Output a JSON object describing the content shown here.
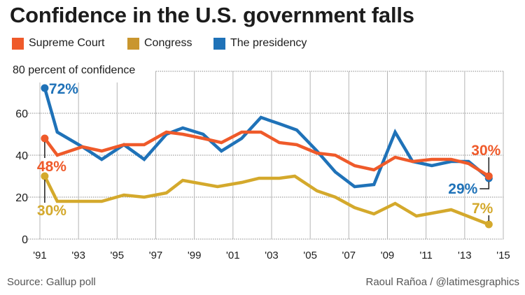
{
  "title": "Confidence in the U.S. government falls",
  "footer": {
    "source": "Source: Gallup poll",
    "credit": "Raoul Rañoa / @latimesgraphics"
  },
  "chart_data": {
    "type": "line",
    "title": "Confidence in the U.S. government falls",
    "xlabel": "",
    "ylabel": "percent of confidence",
    "ylabel_display": "80 percent of confidence",
    "xlim": [
      1991,
      2015
    ],
    "ylim": [
      0,
      80
    ],
    "x_ticks": [
      1991,
      1993,
      1995,
      1997,
      1999,
      2001,
      2003,
      2005,
      2007,
      2009,
      2011,
      2013,
      2015
    ],
    "x_tick_labels": [
      "'91",
      "'93",
      "'95",
      "'97",
      "'99",
      "'01",
      "'03",
      "'05",
      "'07",
      "'09",
      "'11",
      "'13",
      "'15"
    ],
    "y_ticks": [
      0,
      20,
      40,
      60,
      80
    ],
    "y_tick_labels": [
      "0",
      "20",
      "40",
      "60",
      ""
    ],
    "grid": true,
    "legend_position": "top-left",
    "series": [
      {
        "name": "Supreme Court",
        "color": "#ef5a2a",
        "points": [
          [
            1991.25,
            48
          ],
          [
            1991.9,
            40
          ],
          [
            1993.2,
            44
          ],
          [
            1994.2,
            42
          ],
          [
            1995.35,
            45
          ],
          [
            1996.4,
            45
          ],
          [
            1997.55,
            51
          ],
          [
            1998.4,
            50
          ],
          [
            1999.45,
            48
          ],
          [
            2000.4,
            46
          ],
          [
            2001.45,
            51
          ],
          [
            2002.45,
            51
          ],
          [
            2003.4,
            46
          ],
          [
            2004.3,
            45
          ],
          [
            2005.35,
            41
          ],
          [
            2006.3,
            40
          ],
          [
            2007.3,
            35
          ],
          [
            2008.3,
            33
          ],
          [
            2009.4,
            39
          ],
          [
            2010.3,
            37
          ],
          [
            2011.3,
            38
          ],
          [
            2012.3,
            38
          ],
          [
            2013.2,
            36
          ],
          [
            2014.25,
            30
          ]
        ],
        "start_label": "48%",
        "end_label": "30%"
      },
      {
        "name": "Congress",
        "color": "#d4a92c",
        "legend_color": "#c9962e",
        "points": [
          [
            1991.25,
            30
          ],
          [
            1991.9,
            18
          ],
          [
            1993.2,
            18
          ],
          [
            1994.2,
            18
          ],
          [
            1995.35,
            21
          ],
          [
            1996.4,
            20
          ],
          [
            1997.55,
            22
          ],
          [
            1998.4,
            28
          ],
          [
            2000.2,
            25
          ],
          [
            2001.45,
            27
          ],
          [
            2002.35,
            29
          ],
          [
            2003.4,
            29
          ],
          [
            2004.2,
            30
          ],
          [
            2005.35,
            23
          ],
          [
            2006.3,
            20
          ],
          [
            2007.3,
            15
          ],
          [
            2008.3,
            12
          ],
          [
            2009.4,
            17
          ],
          [
            2010.5,
            11
          ],
          [
            2012.3,
            14
          ],
          [
            2014.25,
            7
          ]
        ],
        "start_label": "30%",
        "end_label": "7%"
      },
      {
        "name": "The presidency",
        "color": "#1f72b8",
        "points": [
          [
            1991.25,
            72
          ],
          [
            1991.9,
            51
          ],
          [
            1993.2,
            44
          ],
          [
            1994.2,
            38
          ],
          [
            1995.35,
            45
          ],
          [
            1996.4,
            38
          ],
          [
            1997.55,
            50
          ],
          [
            1998.4,
            53
          ],
          [
            1999.45,
            50
          ],
          [
            2000.4,
            42
          ],
          [
            2001.45,
            48
          ],
          [
            2002.45,
            58
          ],
          [
            2003.4,
            55
          ],
          [
            2004.3,
            52
          ],
          [
            2005.35,
            42
          ],
          [
            2006.3,
            32
          ],
          [
            2007.3,
            25
          ],
          [
            2008.3,
            26
          ],
          [
            2009.4,
            51
          ],
          [
            2010.3,
            37
          ],
          [
            2011.3,
            35
          ],
          [
            2012.3,
            37
          ],
          [
            2013.2,
            37
          ],
          [
            2014.25,
            29
          ]
        ],
        "start_label": "72%",
        "end_label": "29%"
      }
    ]
  }
}
